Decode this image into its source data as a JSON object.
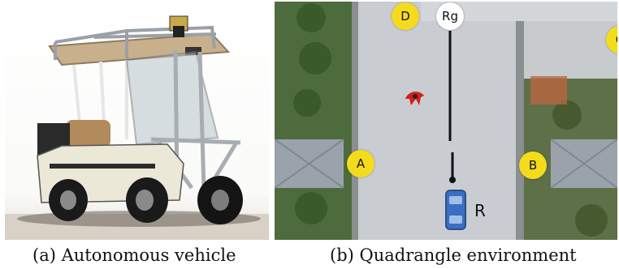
{
  "captions": {
    "a": "(a) Autonomous vehicle",
    "b": "(b) Quadrangle environment"
  },
  "map": {
    "markers": [
      {
        "label": "D",
        "color": "#f4dc1d"
      },
      {
        "label": "Rg",
        "color": "#ffffff"
      },
      {
        "label": "A",
        "color": "#f4dc1d"
      },
      {
        "label": "B",
        "color": "#f4dc1d"
      },
      {
        "label": "C",
        "color": "#f4dc1d"
      }
    ],
    "robot_label": "R",
    "path_color": "#111111",
    "pedestrian_color": "#d42016",
    "robot_color": "#3a6fc4"
  }
}
